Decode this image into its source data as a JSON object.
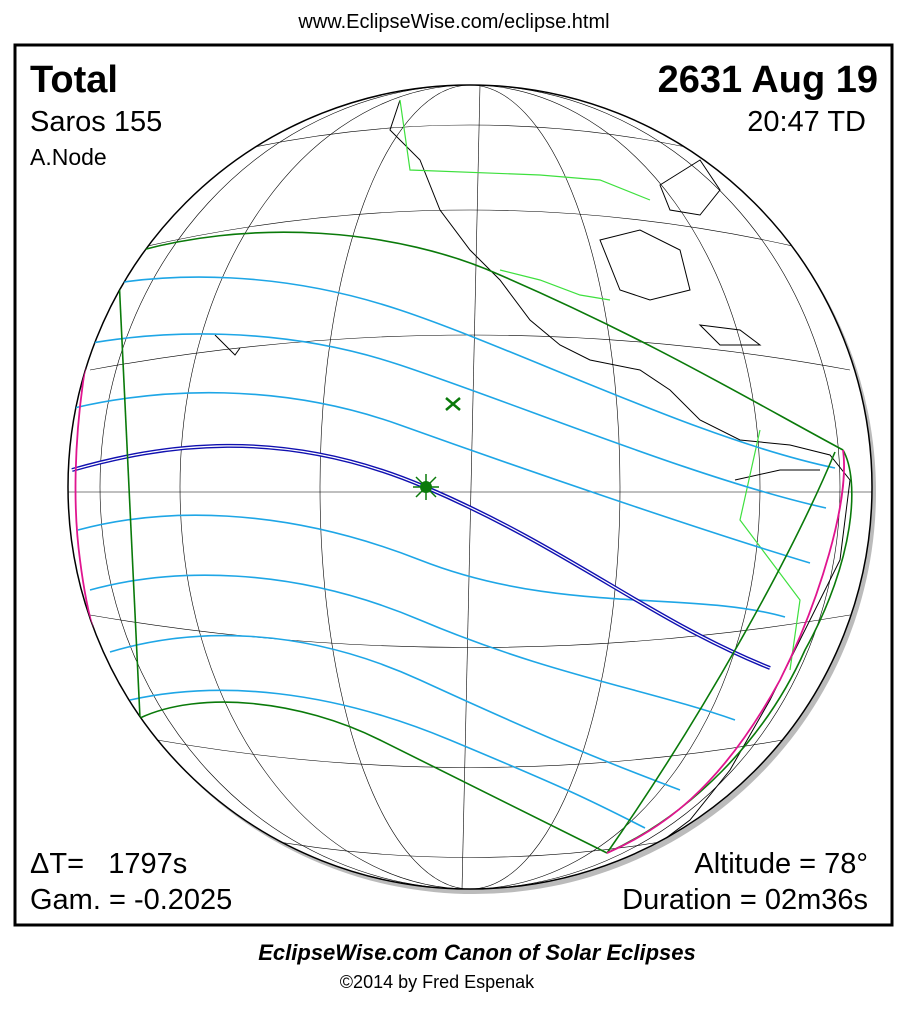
{
  "header": {
    "url": "www.EclipseWise.com/eclipse.html"
  },
  "map": {
    "type": "Total",
    "saros": "Saros 155",
    "node": "A.Node",
    "date": "2631 Aug 19",
    "time": "20:47 TD",
    "delta_t": "ΔT=   1797s",
    "gamma": "Gam. = -0.2025",
    "altitude": "Altitude = 78°",
    "duration": "Duration = 02m36s"
  },
  "footer": {
    "title": "EclipseWise.com Canon of Solar Eclipses",
    "credit": "©2014 by Fred Espenak"
  }
}
